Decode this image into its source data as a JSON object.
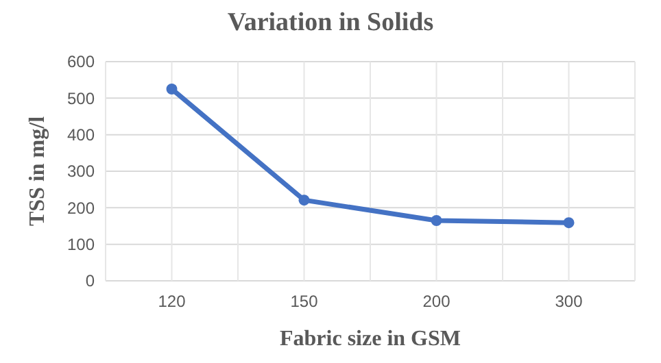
{
  "chart_data": {
    "type": "line",
    "title": "Variation in Solids",
    "xlabel": "Fabric size in GSM",
    "ylabel": "TSS in mg/l",
    "categories": [
      "120",
      "150",
      "200",
      "300"
    ],
    "series": [
      {
        "color": "#4472c4",
        "values": [
          525,
          221,
          165,
          159
        ]
      }
    ],
    "ylim": [
      0,
      600
    ],
    "yticks": [
      0,
      100,
      200,
      300,
      400,
      500,
      600
    ],
    "grid": true,
    "marker": "circle",
    "line_style": "solid"
  }
}
